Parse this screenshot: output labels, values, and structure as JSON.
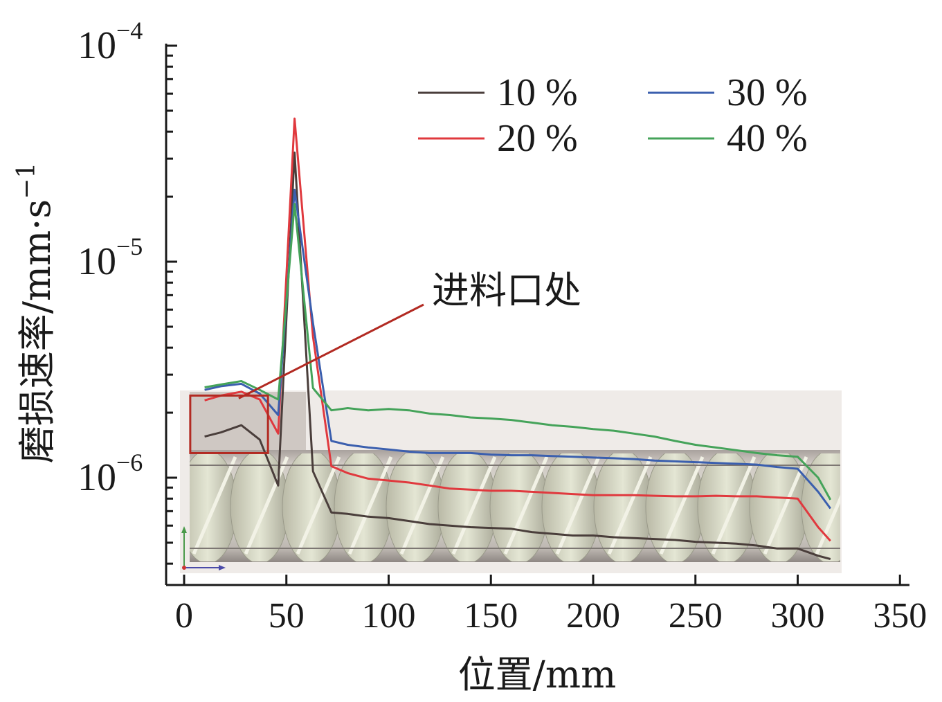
{
  "chart_data": {
    "type": "line",
    "xlabel": "位置/mm",
    "ylabel_main": "磨损速率/mm",
    "ylabel_dot": "·",
    "ylabel_unit": "s",
    "ylabel_exp": "−1",
    "xlim": [
      0,
      350
    ],
    "ylim": [
      4e-07,
      0.0001
    ],
    "yscale": "log",
    "xticks": [
      0,
      50,
      100,
      150,
      200,
      250,
      300,
      350
    ],
    "xtick_labels": [
      "0",
      "50",
      "100",
      "150",
      "200",
      "250",
      "300",
      "350"
    ],
    "yticks": [
      {
        "value": 1e-06,
        "base": "10",
        "exp": "−6"
      },
      {
        "value": 1e-05,
        "base": "10",
        "exp": "−5"
      },
      {
        "value": 0.0001,
        "base": "10",
        "exp": "−4"
      }
    ],
    "legend_position": "top-right",
    "annotation": {
      "text": "进料口处",
      "region_x": [
        3,
        41
      ],
      "region_y": [
        1.3e-06,
        2.4e-06
      ],
      "color": "#b22a22"
    },
    "series": [
      {
        "name": "10 %",
        "color": "#4a3e3b",
        "x": [
          10,
          18,
          28,
          37,
          46,
          54,
          63,
          72,
          80,
          90,
          100,
          110,
          120,
          130,
          140,
          150,
          160,
          170,
          180,
          190,
          200,
          210,
          220,
          230,
          240,
          250,
          260,
          270,
          280,
          290,
          300,
          310,
          316
        ],
        "values": [
          1.55e-06,
          1.62e-06,
          1.75e-06,
          1.5e-06,
          9.2e-07,
          3.2e-05,
          1.07e-06,
          6.9e-07,
          6.8e-07,
          6.6e-07,
          6.5e-07,
          6.3e-07,
          6.1e-07,
          6e-07,
          5.9e-07,
          5.85e-07,
          5.8e-07,
          5.6e-07,
          5.5e-07,
          5.4e-07,
          5.4e-07,
          5.3e-07,
          5.25e-07,
          5.2e-07,
          5.15e-07,
          5.05e-07,
          5e-07,
          4.95e-07,
          4.85e-07,
          4.7e-07,
          4.7e-07,
          4.35e-07,
          4.2e-07
        ]
      },
      {
        "name": "20 %",
        "color": "#e0393e",
        "x": [
          10,
          18,
          28,
          37,
          46,
          54,
          63,
          72,
          80,
          90,
          100,
          110,
          120,
          130,
          140,
          150,
          160,
          170,
          180,
          190,
          200,
          210,
          220,
          230,
          240,
          250,
          260,
          270,
          280,
          290,
          300,
          310,
          316
        ],
        "values": [
          2.28e-06,
          2.4e-06,
          2.5e-06,
          2.3e-06,
          1.6e-06,
          4.6e-05,
          4.5e-06,
          1.13e-06,
          1.05e-06,
          9.9e-07,
          9.7e-07,
          9.5e-07,
          9.2e-07,
          8.9e-07,
          8.8e-07,
          8.7e-07,
          8.7e-07,
          8.6e-07,
          8.5e-07,
          8.4e-07,
          8.3e-07,
          8.3e-07,
          8.3e-07,
          8.25e-07,
          8.2e-07,
          8.2e-07,
          8.25e-07,
          8.2e-07,
          8.2e-07,
          8.1e-07,
          8e-07,
          5.9e-07,
          5.1e-07
        ]
      },
      {
        "name": "30 %",
        "color": "#3b5fae",
        "x": [
          10,
          18,
          28,
          37,
          46,
          54,
          63,
          72,
          80,
          90,
          100,
          110,
          120,
          130,
          140,
          150,
          160,
          170,
          180,
          190,
          200,
          210,
          220,
          230,
          240,
          250,
          260,
          270,
          280,
          290,
          300,
          310,
          316
        ],
        "values": [
          2.55e-06,
          2.65e-06,
          2.72e-06,
          2.45e-06,
          1.95e-06,
          2.15e-05,
          5.2e-06,
          1.48e-06,
          1.42e-06,
          1.38e-06,
          1.35e-06,
          1.32e-06,
          1.3e-06,
          1.3e-06,
          1.3e-06,
          1.28e-06,
          1.27e-06,
          1.27e-06,
          1.26e-06,
          1.25e-06,
          1.24e-06,
          1.23e-06,
          1.22e-06,
          1.2e-06,
          1.19e-06,
          1.18e-06,
          1.17e-06,
          1.16e-06,
          1.15e-06,
          1.12e-06,
          1.1e-06,
          8.6e-07,
          7.2e-07
        ]
      },
      {
        "name": "40 %",
        "color": "#45a35a",
        "x": [
          10,
          18,
          28,
          37,
          46,
          54,
          63,
          72,
          80,
          90,
          100,
          110,
          120,
          130,
          140,
          150,
          160,
          170,
          180,
          190,
          200,
          210,
          220,
          230,
          240,
          250,
          260,
          270,
          280,
          290,
          300,
          310,
          316
        ],
        "values": [
          2.62e-06,
          2.7e-06,
          2.8e-06,
          2.55e-06,
          2.3e-06,
          1.85e-05,
          2.6e-06,
          2.05e-06,
          2.1e-06,
          2.05e-06,
          2.08e-06,
          2.05e-06,
          1.98e-06,
          1.95e-06,
          1.9e-06,
          1.88e-06,
          1.85e-06,
          1.8e-06,
          1.75e-06,
          1.72e-06,
          1.68e-06,
          1.65e-06,
          1.6e-06,
          1.55e-06,
          1.48e-06,
          1.42e-06,
          1.38e-06,
          1.34e-06,
          1.3e-06,
          1.27e-06,
          1.25e-06,
          1e-06,
          7.9e-07
        ]
      }
    ]
  }
}
